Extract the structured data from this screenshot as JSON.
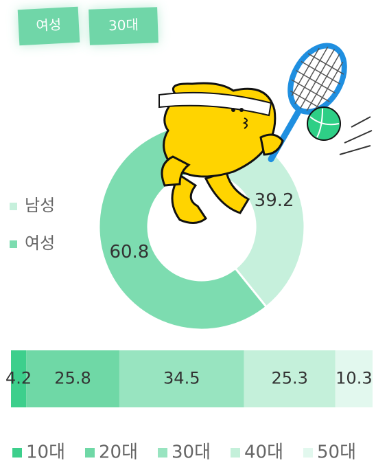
{
  "tags": [
    "여성",
    "30대"
  ],
  "chart_data": [
    {
      "type": "donut",
      "categories": [
        "남성",
        "여성"
      ],
      "values": [
        39.2,
        60.8
      ],
      "colors": [
        "#c6f0dc",
        "#7ddcb0"
      ]
    },
    {
      "type": "stacked-bar",
      "series": [
        {
          "name": "10대",
          "color": "#3dcf8c",
          "values": [
            4.2
          ]
        },
        {
          "name": "20대",
          "color": "#6fd8a6",
          "values": [
            25.8
          ]
        },
        {
          "name": "30대",
          "color": "#98e4c0",
          "values": [
            34.5
          ]
        },
        {
          "name": "40대",
          "color": "#c4f0da",
          "values": [
            25.3
          ]
        },
        {
          "name": "50대",
          "color": "#e2f8ee",
          "values": [
            10.3
          ]
        }
      ]
    }
  ]
}
